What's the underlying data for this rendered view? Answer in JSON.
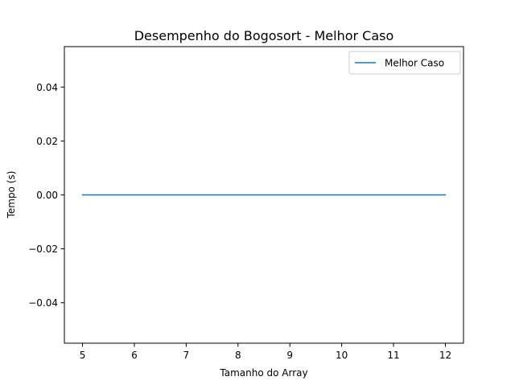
{
  "chart_data": {
    "type": "line",
    "title": "Desempenho do Bogosort - Melhor Caso",
    "xlabel": "Tamanho do Array",
    "ylabel": "Tempo (s)",
    "x": [
      5,
      6,
      7,
      8,
      9,
      10,
      11,
      12
    ],
    "series": [
      {
        "name": "Melhor Caso",
        "color": "#1f77b4",
        "values": [
          0,
          0,
          0,
          0,
          0,
          0,
          0,
          0
        ]
      }
    ],
    "xlim": [
      4.65,
      12.35
    ],
    "ylim": [
      -0.055,
      0.055
    ],
    "xticks": [
      5,
      6,
      7,
      8,
      9,
      10,
      11,
      12
    ],
    "yticks": [
      -0.04,
      -0.02,
      0.0,
      0.02,
      0.04
    ],
    "ytick_labels": [
      "−0.04",
      "−0.02",
      "0.00",
      "0.02",
      "0.04"
    ],
    "grid": false,
    "legend_position": "upper right"
  }
}
